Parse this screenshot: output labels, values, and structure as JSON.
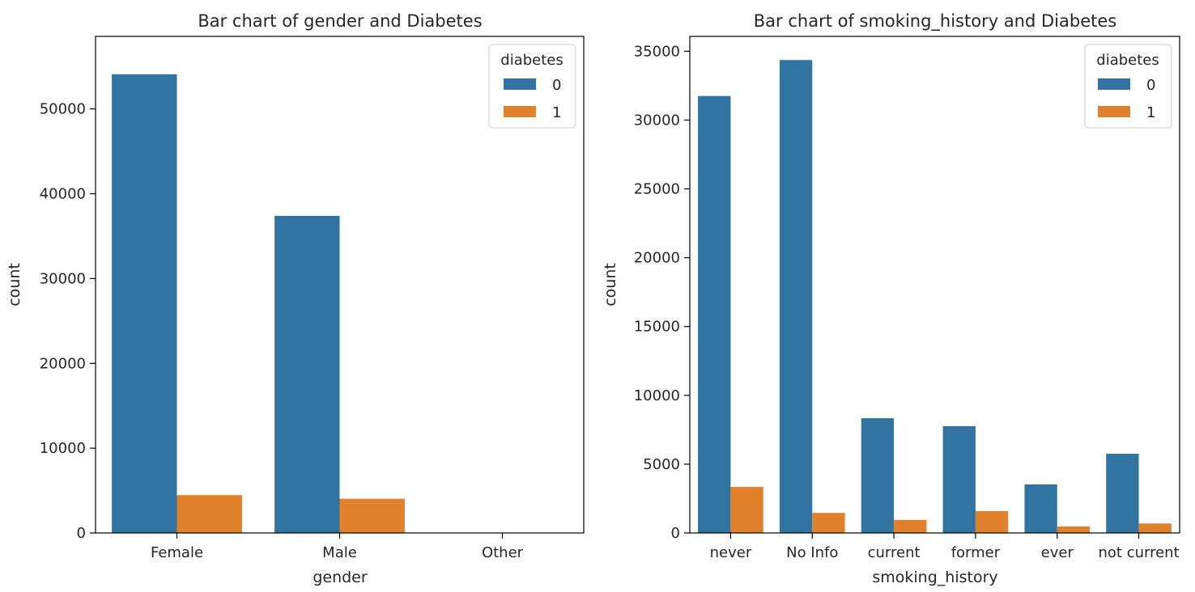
{
  "chart_data": [
    {
      "type": "bar",
      "title": "Bar chart of gender and Diabetes",
      "xlabel": "gender",
      "ylabel": "count",
      "categories": [
        "Female",
        "Male",
        "Other"
      ],
      "series": [
        {
          "name": "0",
          "values": [
            54091,
            37391,
            18
          ],
          "color": "#3274a1"
        },
        {
          "name": "1",
          "values": [
            4461,
            4039,
            0
          ],
          "color": "#e1812c"
        }
      ],
      "ylim": [
        0,
        58552
      ],
      "yticks": [
        0,
        10000,
        20000,
        30000,
        40000,
        50000
      ],
      "legend": {
        "title": "diabetes",
        "position": "top-right"
      },
      "grid": false
    },
    {
      "type": "bar",
      "title": "Bar chart of smoking_history and Diabetes",
      "xlabel": "smoking_history",
      "ylabel": "count",
      "categories": [
        "never",
        "No Info",
        "current",
        "former",
        "ever",
        "not current"
      ],
      "series": [
        {
          "name": "0",
          "values": [
            31750,
            34362,
            8338,
            7762,
            3532,
            5757
          ],
          "color": "#3274a1"
        },
        {
          "name": "1",
          "values": [
            3346,
            1454,
            948,
            1590,
            472,
            690
          ],
          "color": "#e1812c"
        }
      ],
      "ylim": [
        0,
        36080
      ],
      "yticks": [
        0,
        5000,
        10000,
        15000,
        20000,
        25000,
        30000,
        35000
      ],
      "legend": {
        "title": "diabetes",
        "position": "top-right"
      },
      "grid": false
    }
  ]
}
